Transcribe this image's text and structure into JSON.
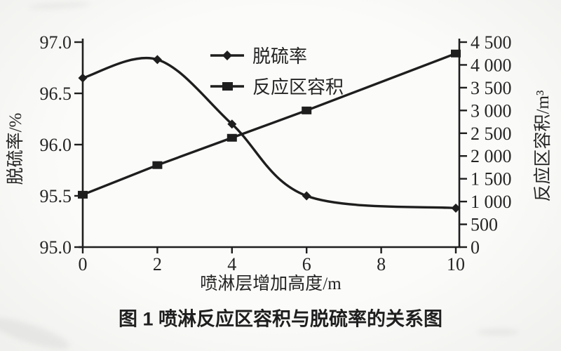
{
  "figure": {
    "caption": "图 1  喷淋反应区容积与脱硫率的关系图",
    "background_color": "#fbfbf9",
    "ink_color": "#1e1e1e"
  },
  "legend": {
    "position": "top-right-inside",
    "items": [
      {
        "label": "脱硫率",
        "marker": "diamond-marker"
      },
      {
        "label": "反应区容积",
        "marker": "square-marker"
      }
    ]
  },
  "chart_data": {
    "type": "line",
    "title": "图 1  喷淋反应区容积与脱硫率的关系图",
    "xlabel": "喷淋层增加高度/m",
    "ylabel_left": "脱硫率/%",
    "ylabel_right": "反应区容积/m³",
    "grid": false,
    "x_range": [
      0,
      10
    ],
    "left_range": [
      95.0,
      97.0
    ],
    "right_range": [
      0,
      4500
    ],
    "x_ticks": [
      {
        "v": 0,
        "label": "0"
      },
      {
        "v": 2,
        "label": "2"
      },
      {
        "v": 4,
        "label": "4"
      },
      {
        "v": 6,
        "label": "6"
      },
      {
        "v": 8,
        "label": "8"
      },
      {
        "v": 10,
        "label": "10"
      }
    ],
    "left_ticks": [
      {
        "v": 97.0,
        "label": "97.0"
      },
      {
        "v": 96.5,
        "label": "96.5"
      },
      {
        "v": 96.0,
        "label": "96.0"
      },
      {
        "v": 95.5,
        "label": "95.5"
      },
      {
        "v": 95.0,
        "label": "95.0"
      }
    ],
    "right_ticks": [
      {
        "v": 4500,
        "label": "4 500"
      },
      {
        "v": 4000,
        "label": "4 000"
      },
      {
        "v": 3500,
        "label": "3 500"
      },
      {
        "v": 3000,
        "label": "3 000"
      },
      {
        "v": 2500,
        "label": "2 500"
      },
      {
        "v": 2000,
        "label": "2 000"
      },
      {
        "v": 1500,
        "label": "1 500"
      },
      {
        "v": 1000,
        "label": "1 000"
      },
      {
        "v": 500,
        "label": "500"
      },
      {
        "v": 0,
        "label": "0"
      }
    ],
    "series": [
      {
        "name": "脱硫率",
        "axis": "left",
        "marker": "diamond",
        "smooth": true,
        "points": [
          {
            "x": 0,
            "y": 96.65
          },
          {
            "x": 2,
            "y": 96.83
          },
          {
            "x": 4,
            "y": 96.2
          },
          {
            "x": 6,
            "y": 95.5
          },
          {
            "x": 10,
            "y": 95.38
          }
        ]
      },
      {
        "name": "反应区容积",
        "axis": "right",
        "marker": "square",
        "smooth": false,
        "points": [
          {
            "x": 0,
            "y": 1150
          },
          {
            "x": 2,
            "y": 1800
          },
          {
            "x": 4,
            "y": 2400
          },
          {
            "x": 6,
            "y": 3000
          },
          {
            "x": 10,
            "y": 4250
          }
        ]
      }
    ]
  }
}
